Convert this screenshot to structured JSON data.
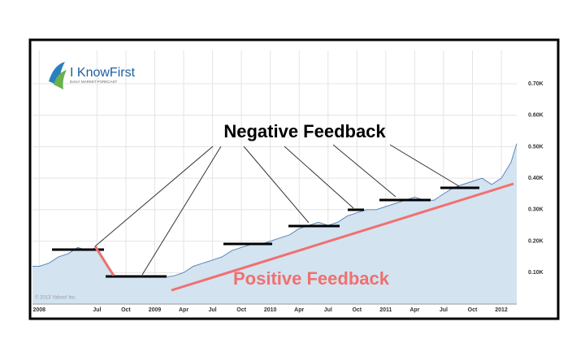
{
  "chart_data": {
    "type": "area",
    "logo": {
      "name": "I KnowFirst",
      "tagline": "DAILY MARKET FORECAST"
    },
    "credit": "© 2013 Yahoo! Inc.",
    "annotations": [
      "Negative Feedback",
      "Positive Feedback"
    ],
    "x": [
      -0.7,
      0,
      1,
      2,
      3,
      4,
      5,
      6,
      7.8,
      9,
      10,
      11,
      12,
      13,
      14,
      15,
      16,
      17,
      18,
      19,
      20,
      21,
      22,
      23,
      24,
      25,
      26,
      27,
      28,
      29,
      30,
      31,
      32,
      33,
      34,
      35,
      36,
      37,
      38,
      39,
      40,
      41,
      42,
      43,
      44,
      45,
      46,
      47,
      48,
      49,
      49.6
    ],
    "series": [
      {
        "color": "#5b86b8",
        "fill": "#d3e3f0",
        "values": [
          0.12,
          0.12,
          0.13,
          0.15,
          0.16,
          0.18,
          0.17,
          0.18,
          0.09,
          0.09,
          0.09,
          0.085,
          0.09,
          0.085,
          0.09,
          0.1,
          0.12,
          0.13,
          0.14,
          0.15,
          0.17,
          0.18,
          0.19,
          0.19,
          0.2,
          0.21,
          0.22,
          0.24,
          0.25,
          0.26,
          0.25,
          0.26,
          0.28,
          0.29,
          0.3,
          0.3,
          0.31,
          0.32,
          0.33,
          0.34,
          0.33,
          0.33,
          0.35,
          0.37,
          0.38,
          0.39,
          0.4,
          0.38,
          0.4,
          0.45,
          0.51
        ]
      }
    ],
    "xlim": [
      -0.7,
      49.6
    ],
    "xticks": [
      {
        "value": 0,
        "label": "2008"
      },
      {
        "value": 6,
        "label": "Jul"
      },
      {
        "value": 9,
        "label": "Oct"
      },
      {
        "value": 12,
        "label": "2009"
      },
      {
        "value": 15,
        "label": "Apr"
      },
      {
        "value": 18,
        "label": "Jul"
      },
      {
        "value": 21,
        "label": "Oct"
      },
      {
        "value": 24,
        "label": "2010"
      },
      {
        "value": 27,
        "label": "Apr"
      },
      {
        "value": 30,
        "label": "Jul"
      },
      {
        "value": 33,
        "label": "Oct"
      },
      {
        "value": 36,
        "label": "2011"
      },
      {
        "value": 39,
        "label": "Apr"
      },
      {
        "value": 42,
        "label": "Jul"
      },
      {
        "value": 45,
        "label": "Oct"
      },
      {
        "value": 48,
        "label": "2012"
      }
    ],
    "ylim": [
      0,
      0.806
    ],
    "yticks": [
      {
        "value": 0.1,
        "label": "0.10K"
      },
      {
        "value": 0.2,
        "label": "0.20K"
      },
      {
        "value": 0.3,
        "label": "0.30K"
      },
      {
        "value": 0.4,
        "label": "0.40K"
      },
      {
        "value": 0.5,
        "label": "0.50K"
      },
      {
        "value": 0.6,
        "label": "0.60K"
      },
      {
        "value": 0.7,
        "label": "0.70K"
      }
    ],
    "grid": true
  }
}
